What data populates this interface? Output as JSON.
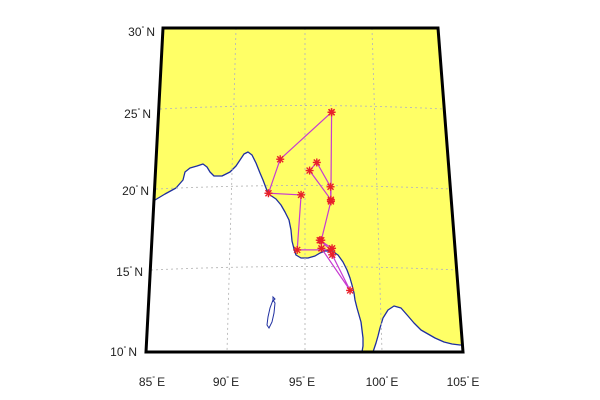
{
  "map": {
    "type": "map",
    "projection_note": "conic",
    "lon_range": [
      85,
      105
    ],
    "lat_range": [
      10,
      30
    ],
    "grid": true,
    "colors": {
      "land": "#ffff66",
      "sea": "#ffffff",
      "coastline": "#1f2fa0",
      "frame": "#000000",
      "grid": "#b8b8b8",
      "track": "#c73bd1",
      "marker": "#e8202a"
    },
    "lon_ticks": [
      {
        "value": 85,
        "num": "85",
        "deg": "°",
        "hem": "E"
      },
      {
        "value": 90,
        "num": "90",
        "deg": "°",
        "hem": "E"
      },
      {
        "value": 95,
        "num": "95",
        "deg": "°",
        "hem": "E"
      },
      {
        "value": 100,
        "num": "100",
        "deg": "°",
        "hem": "E"
      },
      {
        "value": 105,
        "num": "105",
        "deg": "°",
        "hem": "E"
      }
    ],
    "lat_ticks": [
      {
        "value": 10,
        "num": "10",
        "deg": "°",
        "hem": "N"
      },
      {
        "value": 15,
        "num": "15",
        "deg": "°",
        "hem": "N"
      },
      {
        "value": 20,
        "num": "20",
        "deg": "°",
        "hem": "N"
      },
      {
        "value": 25,
        "num": "25",
        "deg": "°",
        "hem": "N"
      },
      {
        "value": 30,
        "num": "30",
        "deg": "°",
        "hem": "N"
      }
    ],
    "track_points": [
      {
        "lon": 97.1,
        "lat": 24.8
      },
      {
        "lon": 93.5,
        "lat": 21.9
      },
      {
        "lon": 92.7,
        "lat": 19.8
      },
      {
        "lon": 94.9,
        "lat": 19.7
      },
      {
        "lon": 94.6,
        "lat": 16.3
      },
      {
        "lon": 96.8,
        "lat": 16.3
      },
      {
        "lon": 96.1,
        "lat": 16.9
      },
      {
        "lon": 96.9,
        "lat": 16.4
      },
      {
        "lon": 96.9,
        "lat": 16.0
      },
      {
        "lon": 98.0,
        "lat": 13.8
      },
      {
        "lon": 96.2,
        "lat": 16.4
      },
      {
        "lon": 96.2,
        "lat": 16.9
      },
      {
        "lon": 96.9,
        "lat": 19.3
      },
      {
        "lon": 96.9,
        "lat": 20.2
      },
      {
        "lon": 96.0,
        "lat": 21.7
      },
      {
        "lon": 95.5,
        "lat": 21.2
      },
      {
        "lon": 96.9,
        "lat": 19.4
      },
      {
        "lon": 97.1,
        "lat": 24.8
      }
    ]
  }
}
